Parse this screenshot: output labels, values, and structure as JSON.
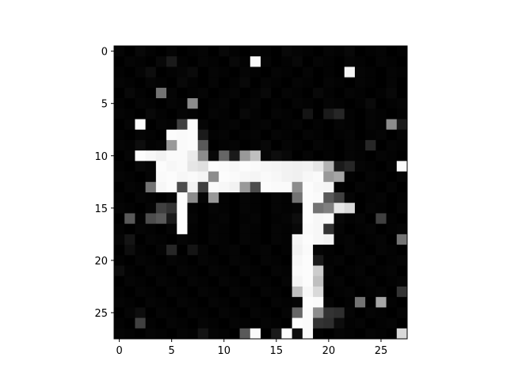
{
  "chart_data": {
    "type": "heatmap",
    "title": "",
    "xlabel": "",
    "ylabel": "",
    "colormap": "gray",
    "vmin": 0,
    "vmax": 1,
    "xlim": [
      -0.5,
      27.5
    ],
    "ylim": [
      27.5,
      -0.5
    ],
    "xticks": [
      0,
      5,
      10,
      15,
      20,
      25
    ],
    "yticks": [
      0,
      5,
      10,
      15,
      20,
      25
    ],
    "grid": false,
    "matrix": [
      [
        0.02,
        0.0,
        0.03,
        0.01,
        0.0,
        0.02,
        0.0,
        0.01,
        0.02,
        0.0,
        0.03,
        0.01,
        0.0,
        0.02,
        0.01,
        0.0,
        0.03,
        0.02,
        0.01,
        0.0,
        0.02,
        0.01,
        0.03,
        0.0,
        0.01,
        0.02,
        0.0,
        0.01
      ],
      [
        0.0,
        0.02,
        0.01,
        0.0,
        0.03,
        0.1,
        0.01,
        0.0,
        0.02,
        0.01,
        0.0,
        0.03,
        0.01,
        0.98,
        0.02,
        0.0,
        0.01,
        0.03,
        0.0,
        0.02,
        0.01,
        0.0,
        0.02,
        0.01,
        0.0,
        0.02,
        0.01,
        0.0
      ],
      [
        0.01,
        0.0,
        0.02,
        0.05,
        0.0,
        0.01,
        0.02,
        0.04,
        0.0,
        0.02,
        0.01,
        0.0,
        0.02,
        0.01,
        0.0,
        0.02,
        0.01,
        0.0,
        0.02,
        0.0,
        0.01,
        0.0,
        0.96,
        0.02,
        0.01,
        0.0,
        0.02,
        0.01
      ],
      [
        0.02,
        0.01,
        0.0,
        0.02,
        0.01,
        0.0,
        0.03,
        0.01,
        0.0,
        0.02,
        0.0,
        0.01,
        0.03,
        0.0,
        0.02,
        0.01,
        0.0,
        0.02,
        0.01,
        0.0,
        0.02,
        0.01,
        0.0,
        0.02,
        0.01,
        0.0,
        0.02,
        0.0
      ],
      [
        0.0,
        0.03,
        0.01,
        0.0,
        0.45,
        0.02,
        0.0,
        0.01,
        0.02,
        0.0,
        0.01,
        0.02,
        0.0,
        0.01,
        0.03,
        0.0,
        0.02,
        0.01,
        0.0,
        0.03,
        0.01,
        0.0,
        0.02,
        0.01,
        0.0,
        0.01,
        0.03,
        0.0
      ],
      [
        0.01,
        0.0,
        0.02,
        0.01,
        0.0,
        0.02,
        0.01,
        0.55,
        0.0,
        0.01,
        0.02,
        0.0,
        0.01,
        0.02,
        0.0,
        0.01,
        0.0,
        0.02,
        0.01,
        0.0,
        0.02,
        0.01,
        0.0,
        0.01,
        0.04,
        0.0,
        0.01,
        0.02
      ],
      [
        0.02,
        0.01,
        0.0,
        0.03,
        0.01,
        0.0,
        0.02,
        0.01,
        0.0,
        0.02,
        0.01,
        0.0,
        0.03,
        0.01,
        0.0,
        0.02,
        0.01,
        0.0,
        0.08,
        0.0,
        0.1,
        0.15,
        0.01,
        0.0,
        0.02,
        0.01,
        0.0,
        0.01
      ],
      [
        0.0,
        0.02,
        0.99,
        0.0,
        0.02,
        0.01,
        0.25,
        0.99,
        0.02,
        0.0,
        0.01,
        0.02,
        0.0,
        0.01,
        0.02,
        0.0,
        0.01,
        0.02,
        0.0,
        0.01,
        0.0,
        0.02,
        0.01,
        0.0,
        0.02,
        0.01,
        0.55,
        0.1
      ],
      [
        0.01,
        0.0,
        0.02,
        0.01,
        0.0,
        0.99,
        0.98,
        0.99,
        0.1,
        0.01,
        0.02,
        0.0,
        0.01,
        0.02,
        0.0,
        0.02,
        0.01,
        0.0,
        0.02,
        0.01,
        0.0,
        0.01,
        0.02,
        0.0,
        0.01,
        0.02,
        0.0,
        0.02
      ],
      [
        0.02,
        0.01,
        0.05,
        0.01,
        0.02,
        0.6,
        0.98,
        0.99,
        0.35,
        0.0,
        0.01,
        0.02,
        0.0,
        0.01,
        0.03,
        0.0,
        0.02,
        0.01,
        0.0,
        0.02,
        0.01,
        0.0,
        0.02,
        0.01,
        0.15,
        0.0,
        0.02,
        0.01
      ],
      [
        0.0,
        0.02,
        0.99,
        0.97,
        0.95,
        0.98,
        0.98,
        0.92,
        0.55,
        0.03,
        0.4,
        0.1,
        0.6,
        0.75,
        0.02,
        0.05,
        0.03,
        0.0,
        0.02,
        0.0,
        0.01,
        0.0,
        0.02,
        0.01,
        0.0,
        0.02,
        0.01,
        0.0
      ],
      [
        0.01,
        0.0,
        0.03,
        0.02,
        0.99,
        0.97,
        0.98,
        0.9,
        0.88,
        0.99,
        0.98,
        0.97,
        0.99,
        0.98,
        0.97,
        0.96,
        0.95,
        0.94,
        0.95,
        0.9,
        0.7,
        0.1,
        0.15,
        0.02,
        0.01,
        0.0,
        0.02,
        0.99
      ],
      [
        0.02,
        0.01,
        0.0,
        0.02,
        0.98,
        0.99,
        0.97,
        0.98,
        0.96,
        0.55,
        0.99,
        0.98,
        0.97,
        0.96,
        0.98,
        0.97,
        0.95,
        0.94,
        0.97,
        0.98,
        0.6,
        0.65,
        0.01,
        0.0,
        0.02,
        0.01,
        0.0,
        0.02
      ],
      [
        0.0,
        0.02,
        0.01,
        0.45,
        0.97,
        0.99,
        0.3,
        0.95,
        0.25,
        0.98,
        0.97,
        0.95,
        0.6,
        0.3,
        0.99,
        0.98,
        0.98,
        0.55,
        0.99,
        0.97,
        0.96,
        0.01,
        0.0,
        0.02,
        0.01,
        0.0,
        0.02,
        0.0
      ],
      [
        0.01,
        0.0,
        0.02,
        0.01,
        0.0,
        0.02,
        0.99,
        0.55,
        0.02,
        0.6,
        0.01,
        0.0,
        0.02,
        0.01,
        0.0,
        0.02,
        0.01,
        0.45,
        0.99,
        0.98,
        0.35,
        0.25,
        0.02,
        0.0,
        0.01,
        0.02,
        0.0,
        0.01
      ],
      [
        0.02,
        0.01,
        0.0,
        0.02,
        0.25,
        0.2,
        0.99,
        0.01,
        0.0,
        0.02,
        0.01,
        0.0,
        0.02,
        0.01,
        0.0,
        0.02,
        0.01,
        0.02,
        0.99,
        0.45,
        0.5,
        0.9,
        0.85,
        0.0,
        0.02,
        0.01,
        0.0,
        0.02
      ],
      [
        0.0,
        0.35,
        0.01,
        0.3,
        0.35,
        0.1,
        0.99,
        0.02,
        0.0,
        0.01,
        0.02,
        0.0,
        0.01,
        0.02,
        0.0,
        0.01,
        0.02,
        0.05,
        0.99,
        0.97,
        0.98,
        0.03,
        0.01,
        0.02,
        0.0,
        0.25,
        0.01,
        0.0
      ],
      [
        0.01,
        0.0,
        0.02,
        0.01,
        0.0,
        0.02,
        0.99,
        0.01,
        0.0,
        0.02,
        0.01,
        0.0,
        0.02,
        0.01,
        0.0,
        0.02,
        0.01,
        0.03,
        0.98,
        0.97,
        0.2,
        0.02,
        0.0,
        0.01,
        0.02,
        0.0,
        0.01,
        0.02
      ],
      [
        0.02,
        0.08,
        0.0,
        0.02,
        0.01,
        0.0,
        0.02,
        0.01,
        0.0,
        0.02,
        0.01,
        0.0,
        0.02,
        0.01,
        0.0,
        0.02,
        0.01,
        0.96,
        0.99,
        0.97,
        0.95,
        0.01,
        0.02,
        0.0,
        0.01,
        0.02,
        0.0,
        0.45
      ],
      [
        0.0,
        0.05,
        0.01,
        0.0,
        0.02,
        0.15,
        0.0,
        0.08,
        0.02,
        0.0,
        0.01,
        0.02,
        0.0,
        0.01,
        0.02,
        0.0,
        0.01,
        0.95,
        0.98,
        0.02,
        0.01,
        0.0,
        0.02,
        0.01,
        0.0,
        0.02,
        0.01,
        0.0
      ],
      [
        0.01,
        0.0,
        0.02,
        0.01,
        0.0,
        0.02,
        0.01,
        0.0,
        0.02,
        0.01,
        0.0,
        0.02,
        0.01,
        0.0,
        0.02,
        0.01,
        0.0,
        0.97,
        0.99,
        0.1,
        0.01,
        0.02,
        0.0,
        0.01,
        0.02,
        0.0,
        0.01,
        0.02
      ],
      [
        0.05,
        0.01,
        0.0,
        0.02,
        0.01,
        0.0,
        0.02,
        0.01,
        0.0,
        0.02,
        0.01,
        0.0,
        0.02,
        0.01,
        0.0,
        0.02,
        0.01,
        0.98,
        0.99,
        0.8,
        0.02,
        0.0,
        0.01,
        0.02,
        0.0,
        0.01,
        0.02,
        0.0
      ],
      [
        0.0,
        0.02,
        0.01,
        0.0,
        0.02,
        0.01,
        0.0,
        0.02,
        0.01,
        0.0,
        0.02,
        0.01,
        0.0,
        0.02,
        0.01,
        0.0,
        0.02,
        0.96,
        0.99,
        0.75,
        0.01,
        0.02,
        0.0,
        0.01,
        0.02,
        0.0,
        0.01,
        0.02
      ],
      [
        0.01,
        0.0,
        0.02,
        0.01,
        0.0,
        0.02,
        0.01,
        0.0,
        0.02,
        0.01,
        0.0,
        0.02,
        0.01,
        0.0,
        0.02,
        0.01,
        0.0,
        0.75,
        0.97,
        0.85,
        0.0,
        0.01,
        0.02,
        0.0,
        0.01,
        0.02,
        0.0,
        0.2
      ],
      [
        0.02,
        0.01,
        0.0,
        0.02,
        0.01,
        0.0,
        0.02,
        0.01,
        0.0,
        0.02,
        0.01,
        0.0,
        0.02,
        0.01,
        0.0,
        0.02,
        0.01,
        0.02,
        0.99,
        0.98,
        0.02,
        0.0,
        0.01,
        0.45,
        0.0,
        0.65,
        0.01,
        0.0
      ],
      [
        0.0,
        0.02,
        0.05,
        0.0,
        0.02,
        0.01,
        0.0,
        0.02,
        0.01,
        0.0,
        0.02,
        0.01,
        0.0,
        0.02,
        0.01,
        0.0,
        0.02,
        0.4,
        0.98,
        0.55,
        0.2,
        0.18,
        0.02,
        0.0,
        0.02,
        0.01,
        0.0,
        0.02
      ],
      [
        0.01,
        0.0,
        0.25,
        0.01,
        0.0,
        0.02,
        0.01,
        0.0,
        0.02,
        0.01,
        0.0,
        0.02,
        0.01,
        0.0,
        0.02,
        0.01,
        0.0,
        0.99,
        0.98,
        0.2,
        0.18,
        0.05,
        0.01,
        0.02,
        0.0,
        0.01,
        0.02,
        0.0
      ],
      [
        0.02,
        0.01,
        0.0,
        0.02,
        0.01,
        0.0,
        0.02,
        0.01,
        0.08,
        0.02,
        0.01,
        0.0,
        0.35,
        0.98,
        0.0,
        0.1,
        0.99,
        0.05,
        0.98,
        0.01,
        0.0,
        0.02,
        0.01,
        0.0,
        0.02,
        0.01,
        0.0,
        0.85
      ]
    ]
  }
}
